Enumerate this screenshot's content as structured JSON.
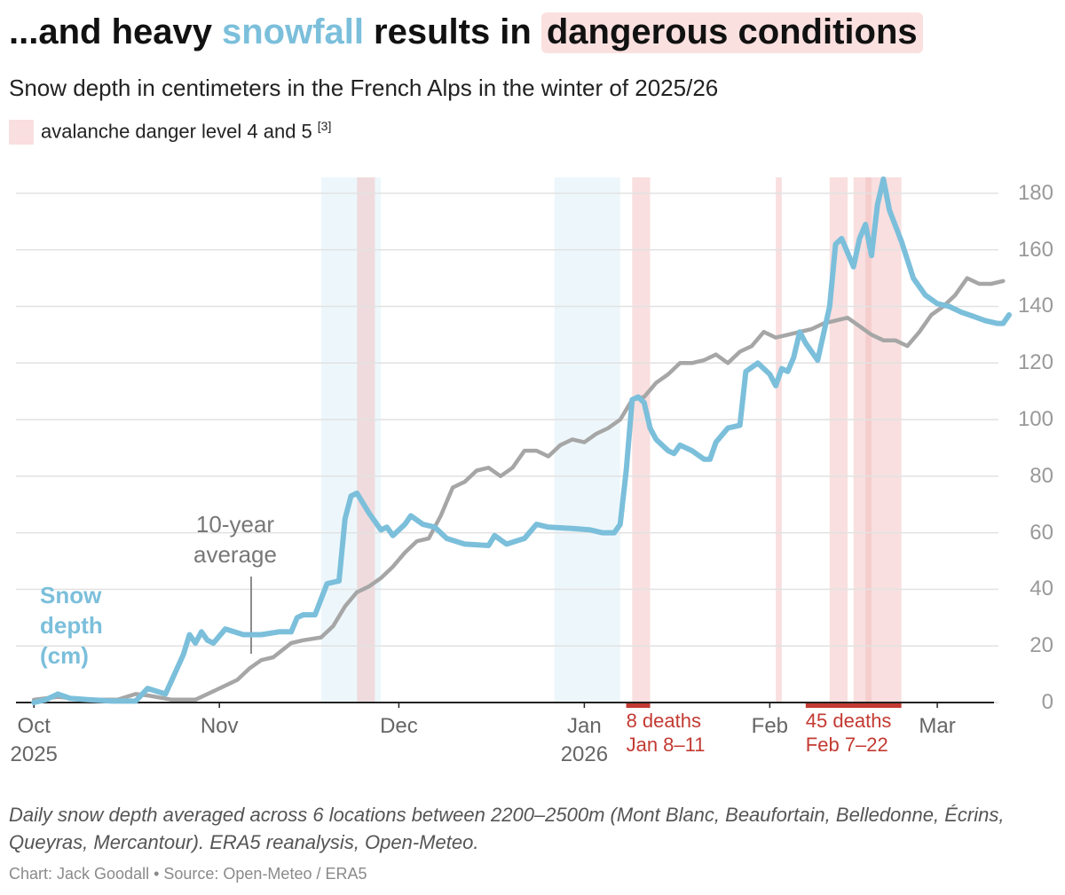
{
  "header": {
    "title": [
      "...and heavy",
      "snowfall",
      "results in",
      "dangerous conditions"
    ],
    "subtitle": "Snow depth in centimeters in the French Alps in the winter of 2025/26",
    "legend": {
      "label": "avalanche danger level 4 and 5",
      "note": "[3]"
    }
  },
  "chart_data": {
    "type": "line",
    "xlim": [
      "2025-09-28",
      "2026-03-13"
    ],
    "xticks": [
      {
        "value": "2025-10-01",
        "label": "Oct 2025"
      },
      {
        "value": "2025-11-01",
        "label": "Nov"
      },
      {
        "value": "2025-12-01",
        "label": "Dec"
      },
      {
        "value": "2026-01-01",
        "label": "Jan 2026"
      },
      {
        "value": "2026-02-01",
        "label": "Feb"
      },
      {
        "value": "2026-03-01",
        "label": "Mar"
      }
    ],
    "ylim": [
      0,
      190
    ],
    "yticks": [
      0,
      20,
      40,
      60,
      80,
      100,
      120,
      140,
      160,
      180
    ],
    "grid": true,
    "danger_color": "#f2b9b9",
    "danger_bands": [
      {
        "start": "2025-11-24",
        "end": "2025-11-27"
      },
      {
        "start": "2026-01-09",
        "end": "2026-01-12"
      },
      {
        "start": "2026-02-02",
        "end": "2026-02-03"
      },
      {
        "start": "2026-02-11",
        "end": "2026-02-14"
      },
      {
        "start": "2026-02-15",
        "end": "2026-02-23"
      },
      {
        "start": "2026-02-17",
        "end": "2026-02-18"
      }
    ],
    "snowfall_color": "#d6edf6",
    "snowfall_bands": [
      {
        "start": "2025-11-18",
        "end": "2025-11-28"
      },
      {
        "start": "2025-12-27",
        "end": "2026-01-07"
      }
    ],
    "deaths_color": "#c33a32",
    "deaths": [
      {
        "label": "8 deaths",
        "dates": "Jan 8–11",
        "start": "2026-01-08",
        "end": "2026-01-12"
      },
      {
        "label": "45 deaths",
        "dates": "Feb 7–22",
        "start": "2026-02-07",
        "end": "2026-02-23"
      }
    ],
    "series": [
      {
        "name": "Snow depth (cm)",
        "color": "#7bbfdb",
        "x": [
          "2025-10-01",
          "2025-10-03",
          "2025-10-05",
          "2025-10-07",
          "2025-10-10",
          "2025-10-14",
          "2025-10-18",
          "2025-10-20",
          "2025-10-23",
          "2025-10-26",
          "2025-10-27",
          "2025-10-28",
          "2025-10-29",
          "2025-10-30",
          "2025-10-31",
          "2025-11-02",
          "2025-11-05",
          "2025-11-08",
          "2025-11-11",
          "2025-11-13",
          "2025-11-14",
          "2025-11-15",
          "2025-11-17",
          "2025-11-19",
          "2025-11-21",
          "2025-11-22",
          "2025-11-23",
          "2025-11-24",
          "2025-11-26",
          "2025-11-28",
          "2025-11-29",
          "2025-11-30",
          "2025-12-02",
          "2025-12-03",
          "2025-12-05",
          "2025-12-07",
          "2025-12-09",
          "2025-12-12",
          "2025-12-16",
          "2025-12-17",
          "2025-12-19",
          "2025-12-22",
          "2025-12-24",
          "2025-12-26",
          "2025-12-30",
          "2026-01-02",
          "2026-01-04",
          "2026-01-06",
          "2026-01-07",
          "2026-01-08",
          "2026-01-09",
          "2026-01-10",
          "2026-01-11",
          "2026-01-12",
          "2026-01-13",
          "2026-01-15",
          "2026-01-16",
          "2026-01-17",
          "2026-01-19",
          "2026-01-21",
          "2026-01-22",
          "2026-01-23",
          "2026-01-25",
          "2026-01-27",
          "2026-01-28",
          "2026-01-30",
          "2026-02-01",
          "2026-02-02",
          "2026-02-03",
          "2026-02-04",
          "2026-02-05",
          "2026-02-06",
          "2026-02-07",
          "2026-02-09",
          "2026-02-11",
          "2026-02-12",
          "2026-02-13",
          "2026-02-15",
          "2026-02-16",
          "2026-02-17",
          "2026-02-18",
          "2026-02-19",
          "2026-02-20",
          "2026-02-21",
          "2026-02-23",
          "2026-02-25",
          "2026-02-27",
          "2026-03-01",
          "2026-03-03",
          "2026-03-05",
          "2026-03-07",
          "2026-03-09",
          "2026-03-11",
          "2026-03-12",
          "2026-03-13"
        ],
        "values": [
          0,
          1,
          3,
          1.5,
          1,
          0.5,
          0.5,
          5,
          3,
          17,
          24,
          21,
          25,
          22,
          21,
          26,
          24,
          24,
          25,
          25,
          30,
          31,
          31,
          42,
          43,
          65,
          73,
          74,
          67,
          61,
          62,
          59,
          63,
          66,
          63,
          62,
          58,
          56,
          55.5,
          59,
          56,
          58,
          63,
          62,
          61.5,
          61,
          60,
          60,
          63,
          82,
          107,
          108,
          106,
          97,
          93,
          89,
          88,
          91,
          89,
          86,
          86,
          92,
          97,
          98,
          117,
          120,
          116,
          112,
          118,
          117,
          122,
          131,
          127,
          121,
          140,
          162,
          164,
          154,
          164,
          169,
          158,
          176,
          185,
          174,
          163,
          150,
          144,
          141,
          140,
          138,
          136.5,
          135,
          134,
          134,
          137
        ]
      },
      {
        "name": "10-year average",
        "color": "#a6a6a6",
        "x": [
          "2025-10-01",
          "2025-10-05",
          "2025-10-10",
          "2025-10-15",
          "2025-10-18",
          "2025-10-20",
          "2025-10-24",
          "2025-10-28",
          "2025-11-01",
          "2025-11-04",
          "2025-11-06",
          "2025-11-08",
          "2025-11-10",
          "2025-11-13",
          "2025-11-15",
          "2025-11-18",
          "2025-11-20",
          "2025-11-22",
          "2025-11-24",
          "2025-11-26",
          "2025-11-28",
          "2025-11-30",
          "2025-12-02",
          "2025-12-04",
          "2025-12-06",
          "2025-12-08",
          "2025-12-10",
          "2025-12-12",
          "2025-12-14",
          "2025-12-16",
          "2025-12-18",
          "2025-12-20",
          "2025-12-22",
          "2025-12-24",
          "2025-12-26",
          "2025-12-28",
          "2025-12-30",
          "2026-01-01",
          "2026-01-03",
          "2026-01-05",
          "2026-01-07",
          "2026-01-09",
          "2026-01-11",
          "2026-01-13",
          "2026-01-15",
          "2026-01-17",
          "2026-01-19",
          "2026-01-21",
          "2026-01-23",
          "2026-01-25",
          "2026-01-27",
          "2026-01-29",
          "2026-01-31",
          "2026-02-02",
          "2026-02-04",
          "2026-02-06",
          "2026-02-08",
          "2026-02-10",
          "2026-02-12",
          "2026-02-14",
          "2026-02-16",
          "2026-02-18",
          "2026-02-20",
          "2026-02-22",
          "2026-02-24",
          "2026-02-26",
          "2026-02-28",
          "2026-03-02",
          "2026-03-04",
          "2026-03-06",
          "2026-03-08",
          "2026-03-10",
          "2026-03-12"
        ],
        "values": [
          1,
          2,
          1,
          1,
          3,
          2.5,
          1,
          1,
          5,
          8,
          12,
          15,
          16,
          21,
          22,
          23,
          27,
          34,
          39,
          41,
          44,
          48,
          53,
          57,
          58,
          66,
          76,
          78,
          82,
          83,
          80,
          83,
          89,
          89,
          87,
          91,
          93,
          92,
          95,
          97,
          100,
          107,
          108,
          113,
          116,
          120,
          120,
          121,
          123,
          120,
          124,
          126,
          131,
          129,
          130,
          131,
          132,
          134,
          135,
          136,
          133,
          130,
          128,
          128,
          126,
          131,
          137,
          140,
          144,
          150,
          148,
          148,
          149
        ]
      }
    ]
  },
  "caption": "Daily snow depth averaged across 6 locations between 2200–2500m (Mont Blanc, Beaufortain, Belledonne, Écrins, Queyras, Mercantour). ERA5 reanalysis, Open-Meteo.",
  "credit": "Chart: Jack Goodall • Source: Open-Meteo / ERA5"
}
